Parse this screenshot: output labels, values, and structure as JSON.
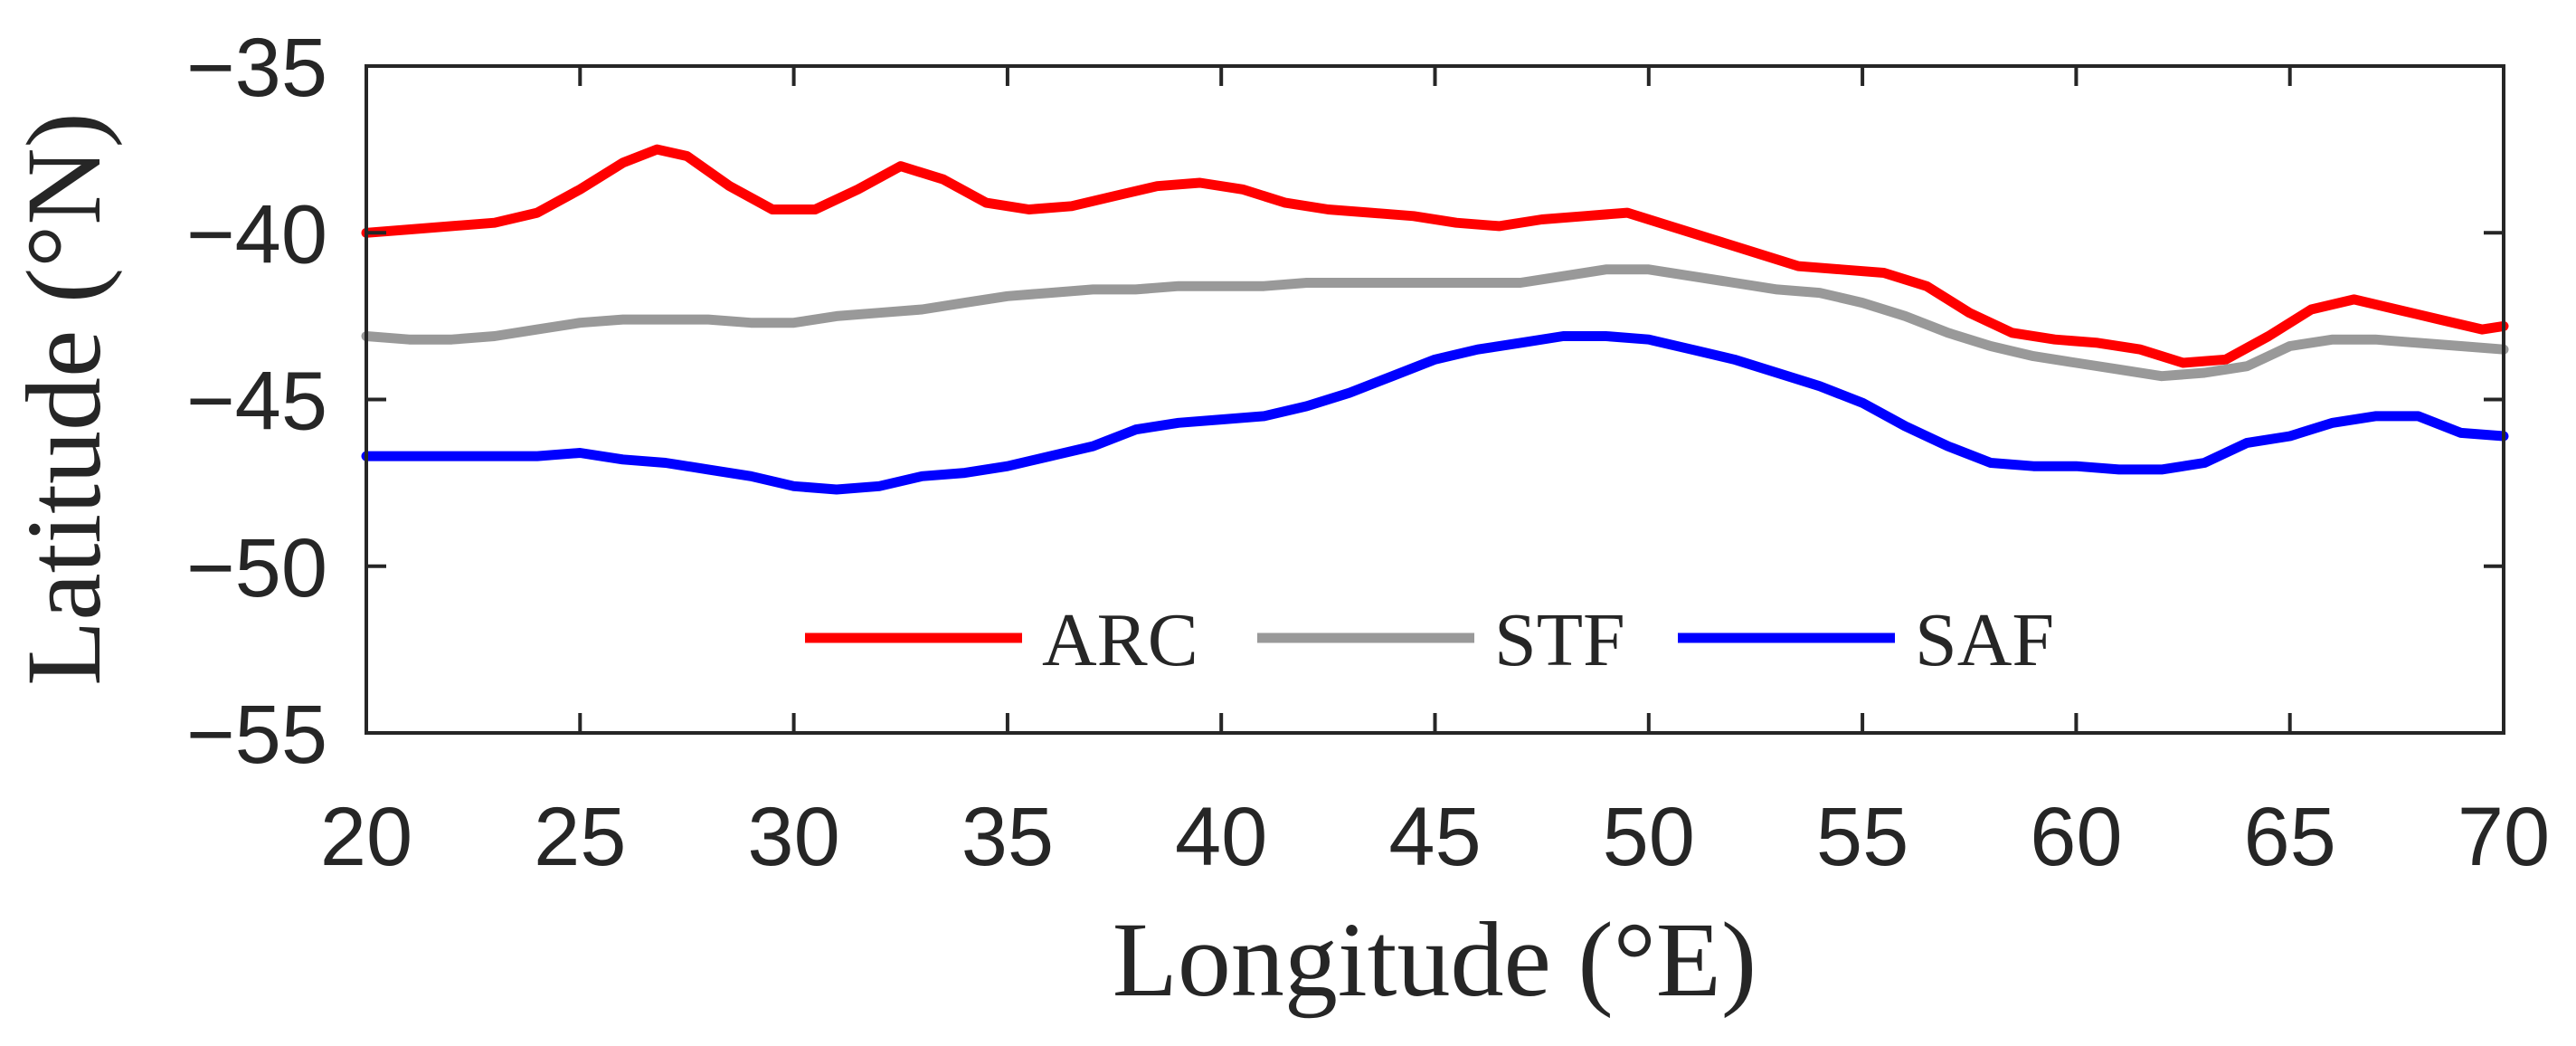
{
  "chart_data": {
    "type": "line",
    "title": "",
    "xlabel": "Longitude (°E)",
    "ylabel": "Latitude (°N)",
    "xlim": [
      20,
      70
    ],
    "ylim": [
      -55,
      -35
    ],
    "xticks": [
      20,
      25,
      30,
      35,
      40,
      45,
      50,
      55,
      60,
      65,
      70
    ],
    "yticks": [
      -35,
      -40,
      -45,
      -50,
      -55
    ],
    "xtick_labels": [
      "20",
      "25",
      "30",
      "35",
      "40",
      "45",
      "50",
      "55",
      "60",
      "65",
      "70"
    ],
    "ytick_labels": [
      "−35",
      "−40",
      "−45",
      "−50",
      "−55"
    ],
    "grid": false,
    "legend_position": "bottom-center",
    "series": [
      {
        "name": "ARC",
        "color": "#ff0000",
        "x": [
          20,
          21,
          22,
          23,
          24,
          25,
          26,
          26.8,
          27.5,
          28.5,
          29.5,
          30.5,
          31.5,
          32.5,
          33.5,
          34.5,
          35.5,
          36.5,
          37.5,
          38.5,
          39.5,
          40.5,
          41.5,
          42.5,
          43.5,
          44.5,
          45.5,
          46.5,
          47.5,
          48.5,
          49.5,
          50.5,
          51.5,
          52.5,
          53.5,
          54.5,
          55.5,
          56.5,
          57.5,
          58.5,
          59.5,
          60.5,
          61.5,
          62.5,
          63.5,
          64.5,
          65.5,
          66.5,
          67.5,
          68.5,
          69.5,
          70
        ],
        "values": [
          -40.0,
          -39.9,
          -39.8,
          -39.7,
          -39.4,
          -38.7,
          -37.9,
          -37.5,
          -37.7,
          -38.6,
          -39.3,
          -39.3,
          -38.7,
          -38.0,
          -38.4,
          -39.1,
          -39.3,
          -39.2,
          -38.9,
          -38.6,
          -38.5,
          -38.7,
          -39.1,
          -39.3,
          -39.4,
          -39.5,
          -39.7,
          -39.8,
          -39.6,
          -39.5,
          -39.4,
          -39.8,
          -40.2,
          -40.6,
          -41.0,
          -41.1,
          -41.2,
          -41.6,
          -42.4,
          -43.0,
          -43.2,
          -43.3,
          -43.5,
          -43.9,
          -43.8,
          -43.1,
          -42.3,
          -42.0,
          -42.3,
          -42.6,
          -42.9,
          -42.8
        ]
      },
      {
        "name": "STF",
        "color": "#999999",
        "x": [
          20,
          21,
          22,
          23,
          24,
          25,
          26,
          27,
          28,
          29,
          30,
          31,
          32,
          33,
          34,
          35,
          36,
          37,
          38,
          39,
          40,
          41,
          42,
          43,
          44,
          45,
          46,
          47,
          48,
          49,
          50,
          51,
          52,
          53,
          54,
          55,
          56,
          57,
          58,
          59,
          60,
          61,
          62,
          63,
          64,
          65,
          66,
          67,
          68,
          69,
          70
        ],
        "values": [
          -43.1,
          -43.2,
          -43.2,
          -43.1,
          -42.9,
          -42.7,
          -42.6,
          -42.6,
          -42.6,
          -42.7,
          -42.7,
          -42.5,
          -42.4,
          -42.3,
          -42.1,
          -41.9,
          -41.8,
          -41.7,
          -41.7,
          -41.6,
          -41.6,
          -41.6,
          -41.5,
          -41.5,
          -41.5,
          -41.5,
          -41.5,
          -41.5,
          -41.3,
          -41.1,
          -41.1,
          -41.3,
          -41.5,
          -41.7,
          -41.8,
          -42.1,
          -42.5,
          -43.0,
          -43.4,
          -43.7,
          -43.9,
          -44.1,
          -44.3,
          -44.2,
          -44.0,
          -43.4,
          -43.2,
          -43.2,
          -43.3,
          -43.4,
          -43.5
        ]
      },
      {
        "name": "SAF",
        "color": "#0000ff",
        "x": [
          20,
          21,
          22,
          23,
          24,
          25,
          26,
          27,
          28,
          29,
          30,
          31,
          32,
          33,
          34,
          35,
          36,
          37,
          38,
          39,
          40,
          41,
          42,
          43,
          44,
          45,
          46,
          47,
          48,
          49,
          50,
          51,
          52,
          53,
          54,
          55,
          56,
          57,
          58,
          59,
          60,
          61,
          62,
          63,
          64,
          65,
          66,
          67,
          68,
          69,
          70
        ],
        "values": [
          -46.7,
          -46.7,
          -46.7,
          -46.7,
          -46.7,
          -46.6,
          -46.8,
          -46.9,
          -47.1,
          -47.3,
          -47.6,
          -47.7,
          -47.6,
          -47.3,
          -47.2,
          -47.0,
          -46.7,
          -46.4,
          -45.9,
          -45.7,
          -45.6,
          -45.5,
          -45.2,
          -44.8,
          -44.3,
          -43.8,
          -43.5,
          -43.3,
          -43.1,
          -43.1,
          -43.2,
          -43.5,
          -43.8,
          -44.2,
          -44.6,
          -45.1,
          -45.8,
          -46.4,
          -46.9,
          -47.0,
          -47.0,
          -47.1,
          -47.1,
          -46.9,
          -46.3,
          -46.1,
          -45.7,
          -45.5,
          -45.5,
          -46.0,
          -46.1
        ]
      }
    ]
  }
}
